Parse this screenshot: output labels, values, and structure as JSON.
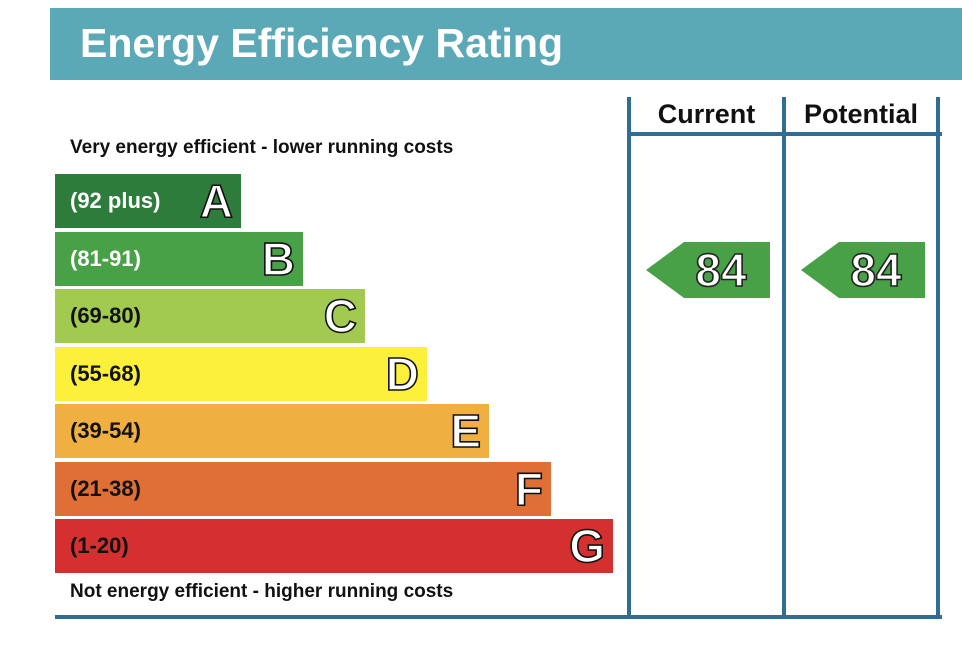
{
  "title": "Energy Efficiency Rating",
  "captions": {
    "top": "Very energy efficient - lower running costs",
    "bottom": "Not energy efficient - higher running costs"
  },
  "columns": {
    "current": "Current",
    "potential": "Potential"
  },
  "chart_data": {
    "type": "bar",
    "bands": [
      {
        "letter": "A",
        "range": "(92 plus)",
        "min": 92,
        "max": null,
        "color": "#2e7c3c",
        "text_color": "#ffffff"
      },
      {
        "letter": "B",
        "range": "(81-91)",
        "min": 81,
        "max": 91,
        "color": "#48a047",
        "text_color": "#ffffff"
      },
      {
        "letter": "C",
        "range": "(69-80)",
        "min": 69,
        "max": 80,
        "color": "#a3ca50",
        "text_color": "#111111"
      },
      {
        "letter": "D",
        "range": "(55-68)",
        "min": 55,
        "max": 68,
        "color": "#fcf03a",
        "text_color": "#111111"
      },
      {
        "letter": "E",
        "range": "(39-54)",
        "min": 39,
        "max": 54,
        "color": "#efb041",
        "text_color": "#111111"
      },
      {
        "letter": "F",
        "range": "(21-38)",
        "min": 21,
        "max": 38,
        "color": "#e06f35",
        "text_color": "#111111"
      },
      {
        "letter": "G",
        "range": "(1-20)",
        "min": 1,
        "max": 20,
        "color": "#d3302f",
        "text_color": "#111111"
      }
    ],
    "ratings": {
      "current": {
        "value": "84",
        "band": "B",
        "color": "#48a047"
      },
      "potential": {
        "value": "84",
        "band": "B",
        "color": "#48a047"
      }
    },
    "header_color": "#5ba8b7",
    "frame_color": "#2f6d93"
  }
}
